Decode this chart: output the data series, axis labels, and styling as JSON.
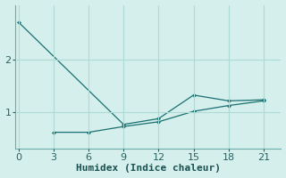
{
  "line1_x": [
    0,
    9,
    12,
    15,
    18,
    21
  ],
  "line1_y": [
    2.72,
    0.77,
    0.88,
    1.33,
    1.22,
    1.24
  ],
  "line2_x": [
    3,
    6,
    9,
    12,
    15,
    18,
    21
  ],
  "line2_y": [
    0.62,
    0.62,
    0.73,
    0.82,
    1.02,
    1.13,
    1.22
  ],
  "line_color": "#1a7070",
  "bg_color": "#d4efec",
  "grid_color": "#aedbd6",
  "xlabel": "Humidex (Indice chaleur)",
  "xticks": [
    0,
    3,
    6,
    9,
    12,
    15,
    18,
    21
  ],
  "yticks": [
    1,
    2
  ],
  "xlim": [
    -0.3,
    22.5
  ],
  "ylim": [
    0.3,
    3.05
  ],
  "xlabel_fontsize": 8,
  "tick_fontsize": 8
}
